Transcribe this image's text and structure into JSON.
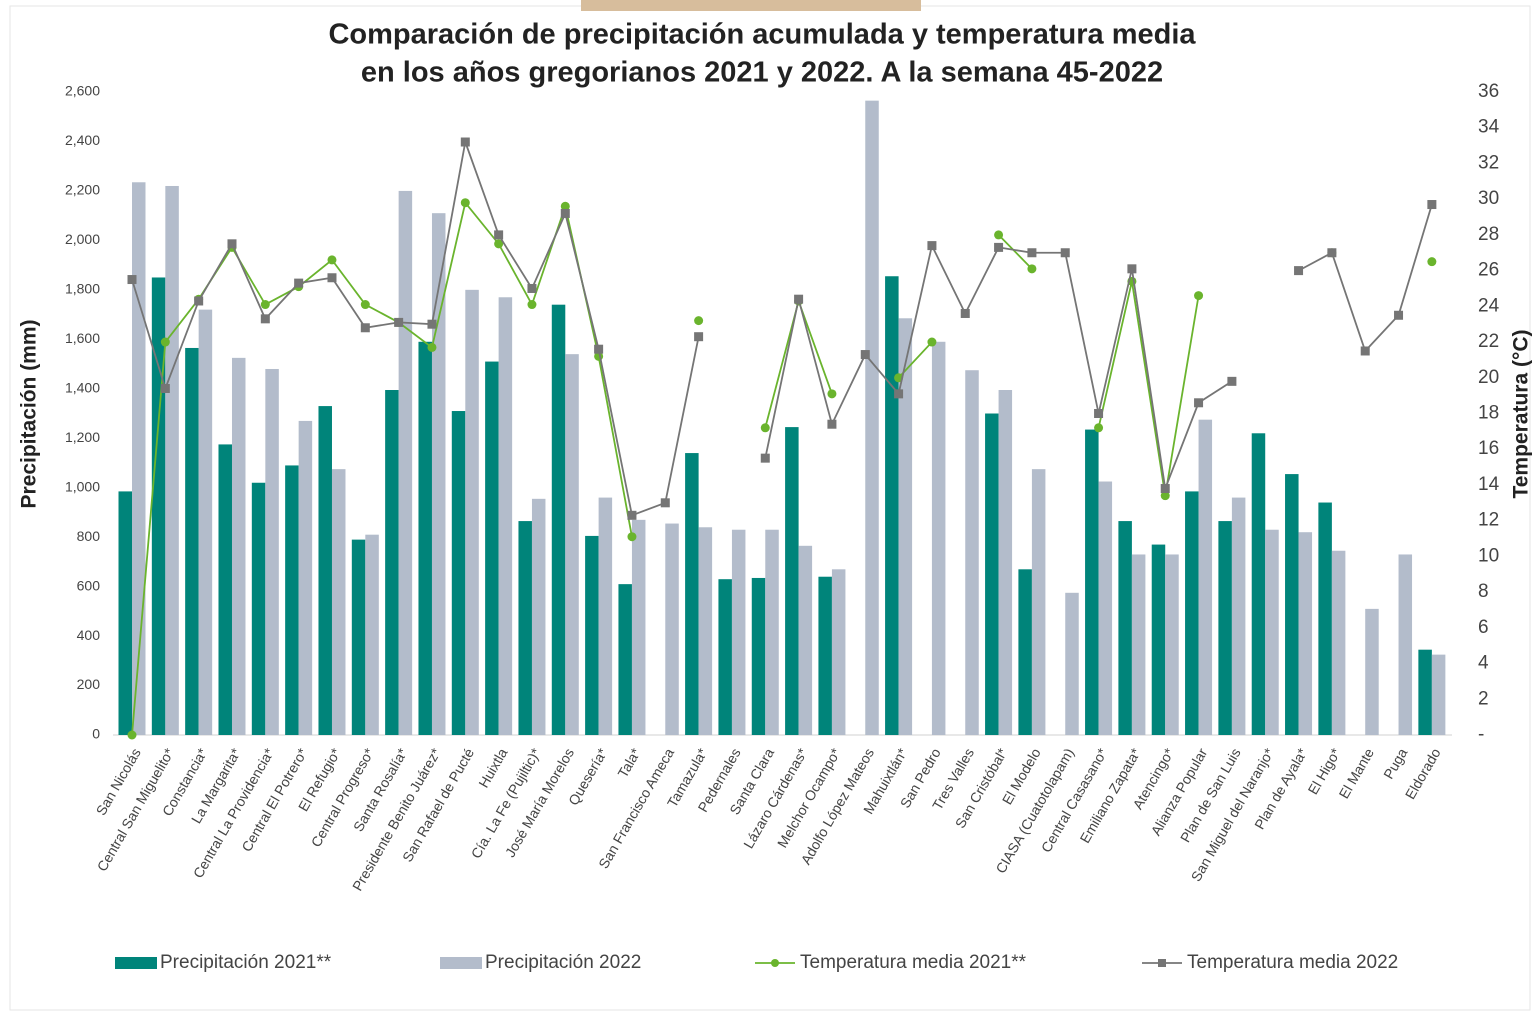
{
  "chart_data": {
    "type": "bar-line",
    "title": [
      "Comparación de precipitación acumulada y temperatura media",
      "en los años gregorianos 2021 y 2022. A la semana 45-2022"
    ],
    "ylabel": "Precipitación (mm)",
    "y2label": "Temperatura (°C)",
    "categories": [
      "San Nicolás",
      "Central San Miguelito*",
      "Constancia*",
      "La Margarita*",
      "Central La Providencia*",
      "Central El Potrero*",
      "El Refugio*",
      "Central Progreso*",
      "Santa Rosalía*",
      "Presidente Benito Juárez*",
      "San Rafael de Pucté",
      "Huixtla",
      "Cía. La Fe (Pujiltic)*",
      "José María Morelos",
      "Quesería*",
      "Tala*",
      "San Francisco Ameca",
      "Tamazula*",
      "Pedernales",
      "Santa Clara",
      "Lázaro Cárdenas*",
      "Melchor Ocampo*",
      "Adolfo López Mateos",
      "Mahuixtlán*",
      "San Pedro",
      "Tres Valles",
      "San Cristóbal*",
      "El Modelo",
      "CIASA (Cuatotolapam)",
      "Central Casasano*",
      "Emiliano Zapata*",
      "Atencingo*",
      "Alianza Popular",
      "Plan de San Luis",
      "San Miguel del Naranjo*",
      "Plan de Ayala*",
      "El Higo*",
      "El Mante",
      "Puga",
      "Eldorado"
    ],
    "series": [
      {
        "name": "Precipitación 2021**",
        "kind": "bar",
        "color": "#00847a",
        "values": [
          985,
          1850,
          1565,
          1175,
          1020,
          1090,
          1330,
          790,
          1395,
          1590,
          1310,
          1510,
          865,
          1740,
          805,
          610,
          null,
          1140,
          630,
          635,
          1245,
          640,
          null,
          1855,
          null,
          null,
          1300,
          670,
          null,
          1235,
          865,
          770,
          985,
          865,
          1220,
          1055,
          940,
          null,
          null,
          345
        ]
      },
      {
        "name": "Precipitación 2022",
        "kind": "bar",
        "color": "#b3bccb",
        "values": [
          2235,
          2220,
          1720,
          1525,
          1480,
          1270,
          1075,
          810,
          2200,
          2110,
          1800,
          1770,
          955,
          1540,
          960,
          870,
          855,
          840,
          830,
          830,
          765,
          670,
          2565,
          1685,
          1590,
          1475,
          1395,
          1075,
          575,
          1025,
          730,
          730,
          1275,
          960,
          830,
          820,
          745,
          510,
          730,
          325
        ]
      },
      {
        "name": "Temperatura media 2021**",
        "kind": "line",
        "marker": "circle",
        "axis": "y2",
        "color": "#6ab42d",
        "values": [
          0,
          22,
          24.4,
          27.3,
          24.1,
          25.1,
          26.6,
          24.1,
          23.1,
          21.7,
          29.8,
          27.5,
          24.1,
          29.6,
          21.2,
          11.1,
          null,
          23.2,
          null,
          17.2,
          24.3,
          19.1,
          null,
          20,
          22,
          null,
          28,
          26.1,
          null,
          17.2,
          25.4,
          13.4,
          24.6,
          null,
          null,
          null,
          27,
          null,
          null,
          26.5
        ]
      },
      {
        "name": "Temperatura media 2022",
        "kind": "line",
        "marker": "square",
        "axis": "y2",
        "color": "#757575",
        "values": [
          25.5,
          19.4,
          24.3,
          27.5,
          23.3,
          25.3,
          25.6,
          22.8,
          23.1,
          23,
          33.2,
          28,
          25,
          29.2,
          21.6,
          12.3,
          13,
          22.3,
          null,
          15.5,
          24.4,
          17.4,
          21.3,
          19.1,
          27.4,
          23.6,
          27.3,
          27,
          27,
          18,
          26.1,
          13.8,
          18.6,
          19.8,
          null,
          26,
          27,
          21.5,
          23.5,
          29.7
        ]
      }
    ],
    "ylim": [
      0,
      2600
    ],
    "yticks": [
      0,
      200,
      400,
      600,
      800,
      {
        "value": 1000,
        "label": "1,000"
      },
      {
        "value": 1200,
        "label": "1,200"
      },
      {
        "value": 1400,
        "label": "1,400"
      },
      {
        "value": 1600,
        "label": "1,600"
      },
      {
        "value": 1800,
        "label": "1,800"
      },
      {
        "value": 2000,
        "label": "2,000"
      },
      {
        "value": 2200,
        "label": "2,200"
      },
      {
        "value": 2400,
        "label": "2,400"
      },
      {
        "value": 2600,
        "label": "2,600"
      }
    ],
    "y2lim": [
      0,
      36
    ],
    "y2ticks": [
      {
        "value": 0,
        "label": "-"
      },
      2,
      4,
      6,
      8,
      10,
      12,
      14,
      16,
      18,
      20,
      22,
      24,
      26,
      28,
      30,
      32,
      34,
      36
    ],
    "legend": "bottom"
  }
}
